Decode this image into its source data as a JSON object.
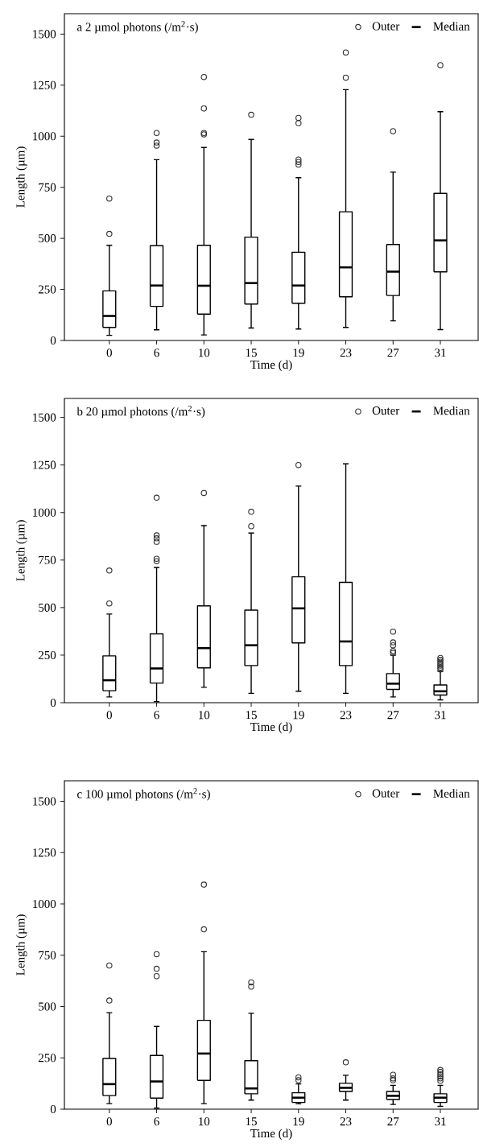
{
  "chart_data": [
    {
      "type": "box",
      "title": "a   2 µmol photons (/m$^{2}$·s)",
      "xlabel": "Time (d)",
      "ylabel": "Length (µm)",
      "categories": [
        "0",
        "6",
        "10",
        "15",
        "19",
        "23",
        "27",
        "31"
      ],
      "ylim": [
        0,
        1600
      ],
      "yticks": [
        0,
        250,
        500,
        750,
        1000,
        1250,
        1500
      ],
      "legend": "top right",
      "series": [
        {
          "name": "Outer",
          "type": "scatter",
          "marker": "circle",
          "color": "#333333",
          "x": [
            "0",
            "0",
            "6",
            "6",
            "6",
            "10",
            "10",
            "10",
            "10",
            "15",
            "19",
            "19",
            "19",
            "19",
            "19",
            "23",
            "23",
            "27",
            "31"
          ],
          "values": [
            695,
            522,
            1016,
            969,
            954,
            1290,
            1136,
            1016,
            1009,
            1105,
            1090,
            1064,
            886,
            874,
            861,
            1410,
            1287,
            1025,
            1348
          ]
        },
        {
          "name": "Median",
          "type": "box",
          "color": "#000000",
          "boxes": [
            {
              "low": 25,
              "q1": 64,
              "median": 120,
              "q3": 243,
              "high": 466
            },
            {
              "low": 52,
              "q1": 167,
              "median": 269,
              "q3": 464,
              "high": 885
            },
            {
              "low": 27,
              "q1": 129,
              "median": 268,
              "q3": 466,
              "high": 945
            },
            {
              "low": 61,
              "q1": 178,
              "median": 281,
              "q3": 506,
              "high": 984
            },
            {
              "low": 56,
              "q1": 182,
              "median": 269,
              "q3": 432,
              "high": 797
            },
            {
              "low": 64,
              "q1": 214,
              "median": 358,
              "q3": 630,
              "high": 1228
            },
            {
              "low": 96,
              "q1": 220,
              "median": 337,
              "q3": 470,
              "high": 824
            },
            {
              "low": 53,
              "q1": 336,
              "median": 490,
              "q3": 720,
              "high": 1120
            }
          ]
        }
      ]
    },
    {
      "type": "box",
      "title": "b   20 µmol photons (/m$^{2}$·s)",
      "xlabel": "Time (d)",
      "ylabel": "Length (µm)",
      "categories": [
        "0",
        "6",
        "10",
        "15",
        "19",
        "23",
        "27",
        "31"
      ],
      "ylim": [
        0,
        1600
      ],
      "yticks": [
        0,
        250,
        500,
        750,
        1000,
        1250,
        1500
      ],
      "legend": "top right",
      "series": [
        {
          "name": "Outer",
          "type": "scatter",
          "marker": "circle",
          "color": "#333333",
          "x": [
            "0",
            "0",
            "6",
            "6",
            "6",
            "6",
            "6",
            "6",
            "10",
            "15",
            "15",
            "19",
            "27",
            "27",
            "27",
            "27",
            "27",
            "31",
            "31",
            "31",
            "31",
            "31",
            "31",
            "31"
          ],
          "values": [
            695,
            522,
            1078,
            880,
            864,
            846,
            757,
            744,
            1103,
            1004,
            928,
            1250,
            374,
            317,
            302,
            272,
            262,
            235,
            225,
            215,
            205,
            195,
            185,
            175
          ]
        },
        {
          "name": "Median",
          "type": "box",
          "color": "#000000",
          "boxes": [
            {
              "low": 30,
              "q1": 63,
              "median": 118,
              "q3": 246,
              "high": 466
            },
            {
              "low": 5,
              "q1": 103,
              "median": 180,
              "q3": 362,
              "high": 711
            },
            {
              "low": 81,
              "q1": 183,
              "median": 287,
              "q3": 509,
              "high": 931
            },
            {
              "low": 49,
              "q1": 195,
              "median": 302,
              "q3": 487,
              "high": 892
            },
            {
              "low": 60,
              "q1": 314,
              "median": 496,
              "q3": 662,
              "high": 1139
            },
            {
              "low": 49,
              "q1": 195,
              "median": 322,
              "q3": 633,
              "high": 1256
            },
            {
              "low": 30,
              "q1": 70,
              "median": 100,
              "q3": 153,
              "high": 250
            },
            {
              "low": 15,
              "q1": 40,
              "median": 60,
              "q3": 93,
              "high": 165
            }
          ]
        }
      ]
    },
    {
      "type": "box",
      "title": "c   100 µmol photons (/m$^{2}$·s)",
      "xlabel": "Time (d)",
      "ylabel": "Length (µm)",
      "categories": [
        "0",
        "6",
        "10",
        "15",
        "19",
        "23",
        "27",
        "31"
      ],
      "ylim": [
        0,
        1600
      ],
      "yticks": [
        0,
        250,
        500,
        750,
        1000,
        1250,
        1500
      ],
      "legend": "top right",
      "series": [
        {
          "name": "Outer",
          "type": "scatter",
          "marker": "circle",
          "color": "#333333",
          "x": [
            "0",
            "0",
            "6",
            "6",
            "6",
            "10",
            "10",
            "15",
            "15",
            "19",
            "19",
            "23",
            "27",
            "27",
            "27",
            "31",
            "31",
            "31",
            "31",
            "31",
            "31"
          ],
          "values": [
            700,
            529,
            755,
            684,
            648,
            1094,
            876,
            618,
            597,
            155,
            141,
            228,
            168,
            150,
            141,
            191,
            181,
            170,
            160,
            150,
            138
          ]
        },
        {
          "name": "Median",
          "type": "box",
          "color": "#000000",
          "boxes": [
            {
              "low": 27,
              "q1": 66,
              "median": 122,
              "q3": 247,
              "high": 470
            },
            {
              "low": 5,
              "q1": 54,
              "median": 135,
              "q3": 262,
              "high": 403
            },
            {
              "low": 27,
              "q1": 140,
              "median": 271,
              "q3": 433,
              "high": 767
            },
            {
              "low": 44,
              "q1": 75,
              "median": 101,
              "q3": 236,
              "high": 467
            },
            {
              "low": 26,
              "q1": 33,
              "median": 56,
              "q3": 80,
              "high": 123
            },
            {
              "low": 44,
              "q1": 86,
              "median": 104,
              "q3": 126,
              "high": 165
            },
            {
              "low": 23,
              "q1": 47,
              "median": 65,
              "q3": 86,
              "high": 116
            },
            {
              "low": 14,
              "q1": 33,
              "median": 56,
              "q3": 75,
              "high": 116
            }
          ]
        }
      ]
    }
  ]
}
